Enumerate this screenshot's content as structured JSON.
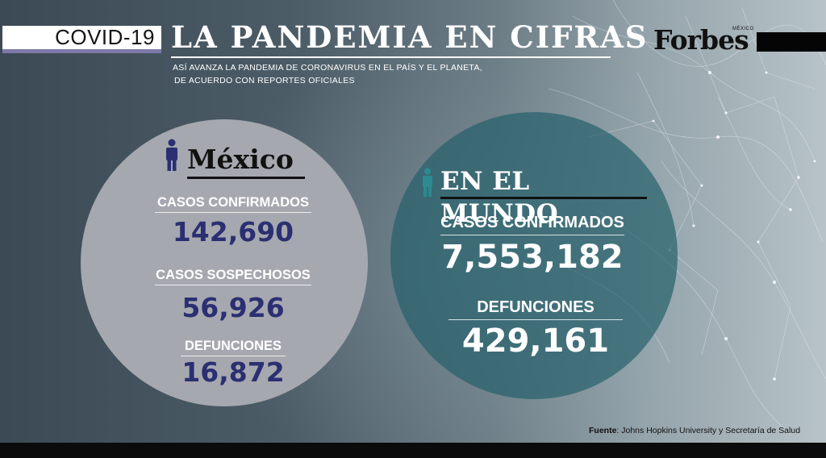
{
  "header": {
    "tag": "COVID-19",
    "title": "LA PANDEMIA EN CIFRAS",
    "subtitle_line1": "ASÍ AVANZA LA PANDEMIA DE CORONAVIRUS EN EL PAÍS Y EL PLANETA,",
    "subtitle_line2": "DE ACUERDO CON REPORTES OFICIALES"
  },
  "brand": {
    "logo_text": "Forbes",
    "logo_sub": "MÉXICO"
  },
  "mexico": {
    "title": "México",
    "confirmed_label": "CASOS CONFIRMADOS",
    "confirmed_value": "142,690",
    "suspected_label": "CASOS SOSPECHOSOS",
    "suspected_value": "56,926",
    "deaths_label": "DEFUNCIONES",
    "deaths_value": "16,872"
  },
  "world": {
    "title": "EN EL MUNDO",
    "confirmed_label": "CASOS CONFIRMADOS",
    "confirmed_value": "7,553,182",
    "deaths_label": "DEFUNCIONES",
    "deaths_value": "429,161"
  },
  "source": {
    "label": "Fuente",
    "text": ": Johns Hopkins University y Secretaría de Salud"
  },
  "icons": [
    "person-icon",
    "network-globe-decoration"
  ],
  "colors": {
    "mexico_number": "#2b2f72",
    "mexico_circle": "#a6a8af",
    "world_circle": "#2a5f68",
    "accent_stripe": "#7d7aa9",
    "person_icon_mexico": "#2b2f72",
    "person_icon_world": "#2c8a90"
  }
}
